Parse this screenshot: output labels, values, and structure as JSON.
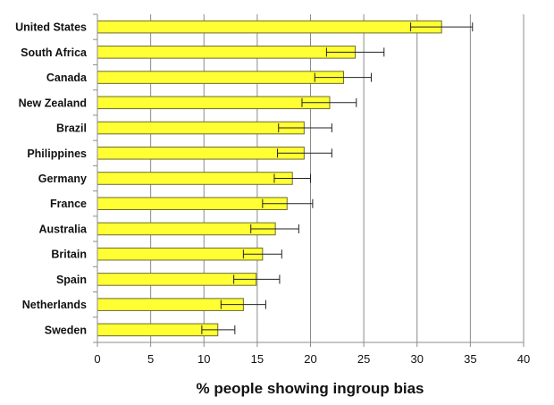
{
  "chart_data": {
    "type": "bar",
    "orientation": "horizontal",
    "categories": [
      "United States",
      "South Africa",
      "Canada",
      "New Zealand",
      "Brazil",
      "Philippines",
      "Germany",
      "France",
      "Australia",
      "Britain",
      "Spain",
      "Netherlands",
      "Sweden"
    ],
    "values": [
      32.3,
      24.2,
      23.1,
      21.8,
      19.4,
      19.4,
      18.3,
      17.8,
      16.7,
      15.5,
      14.9,
      13.7,
      11.3
    ],
    "error_low": [
      29.4,
      21.5,
      20.4,
      19.2,
      17.0,
      16.9,
      16.6,
      15.5,
      14.4,
      13.7,
      12.8,
      11.6,
      9.8
    ],
    "error_high": [
      35.2,
      26.9,
      25.7,
      24.3,
      22.0,
      22.0,
      20.0,
      20.2,
      18.9,
      17.3,
      17.1,
      15.8,
      12.9
    ],
    "xlabel": "% people showing ingroup bias",
    "ylabel": "",
    "title": "",
    "xlim": [
      0,
      40
    ],
    "xticks": [
      0,
      5,
      10,
      15,
      20,
      25,
      30,
      35,
      40
    ],
    "grid": "vertical",
    "legend": "none",
    "colors": {
      "bar_fill": "#ffff33",
      "bar_stroke": "#6b6b2e",
      "grid": "#8c8c8c",
      "error_bar": "#222222"
    }
  }
}
